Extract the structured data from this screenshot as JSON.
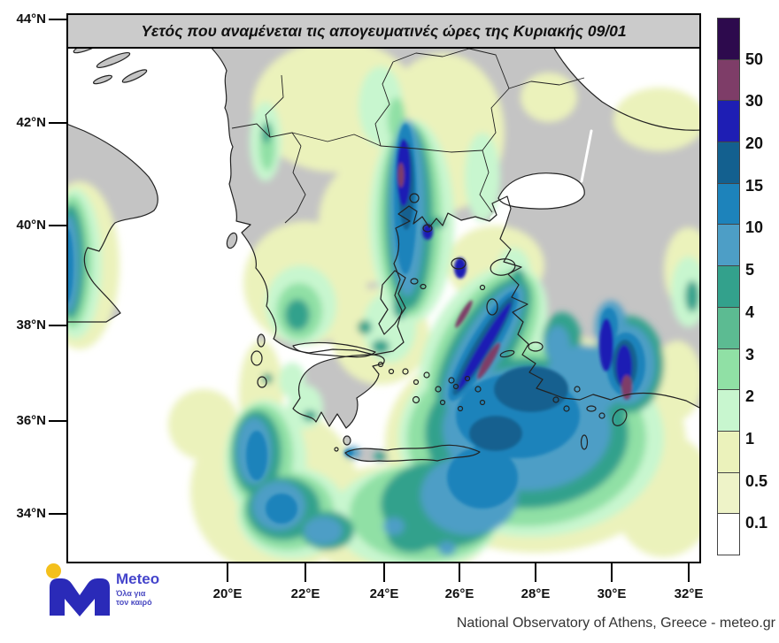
{
  "title": "Υετός που αναμένεται τις απογευματινές ώρες της Κυριακής 09/01",
  "axes": {
    "lat": [
      "44°N",
      "42°N",
      "40°N",
      "38°N",
      "36°N",
      "34°N"
    ],
    "lon": [
      "20°E",
      "22°E",
      "24°E",
      "26°E",
      "28°E",
      "30°E",
      "32°E"
    ]
  },
  "colorbar": {
    "bands": [
      {
        "color": "#2d0a4d",
        "label": "50"
      },
      {
        "color": "#7e3d68",
        "label": "30"
      },
      {
        "color": "#1e1eb4",
        "label": "20"
      },
      {
        "color": "#13608f",
        "label": "15"
      },
      {
        "color": "#1d83bb",
        "label": "10"
      },
      {
        "color": "#4d9ec6",
        "label": "5"
      },
      {
        "color": "#33a18c",
        "label": "4"
      },
      {
        "color": "#5cbb92",
        "label": "3"
      },
      {
        "color": "#90e0a5",
        "label": "2"
      },
      {
        "color": "#c8f6cf",
        "label": "1"
      },
      {
        "color": "#ebf2bb",
        "label": "0.5"
      },
      {
        "color": "#eef3c8",
        "label": "0.1"
      },
      {
        "color": "#ffffff",
        "label": ""
      }
    ]
  },
  "map_colors": {
    "land": "#c4c4c4",
    "sea": "#ffffff",
    "coast": "#222222"
  },
  "logo": {
    "brand": "Meteo",
    "tagline_line1": "Όλα για",
    "tagline_line2": "τον καιρό"
  },
  "attribution": "National Observatory of Athens, Greece - meteo.gr"
}
